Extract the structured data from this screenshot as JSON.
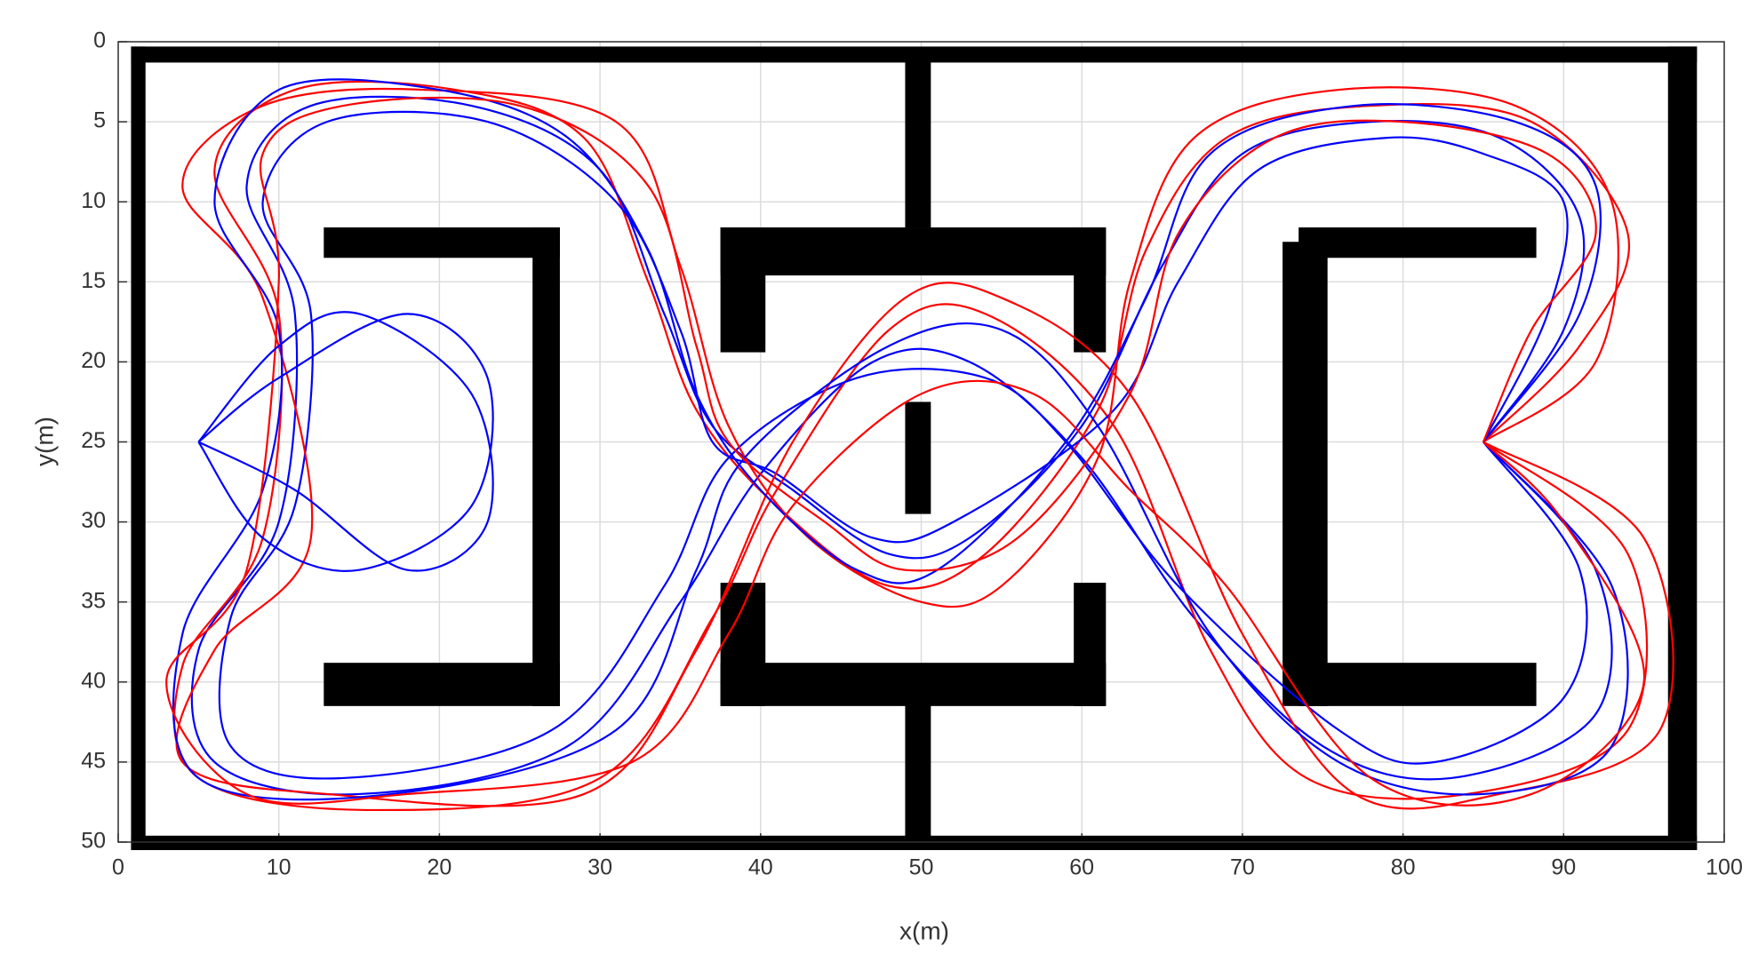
{
  "chart_data": {
    "type": "line",
    "xlabel": "x(m)",
    "ylabel": "y(m)",
    "xlim": [
      0,
      100
    ],
    "xticks": [
      0,
      10,
      20,
      30,
      40,
      50,
      60,
      70,
      80,
      90,
      100
    ],
    "ylim": [
      0,
      50
    ],
    "yticks": [
      0,
      5,
      10,
      15,
      20,
      25,
      30,
      35,
      40,
      45,
      50
    ],
    "y_reversed": true,
    "grid": true,
    "obstacle_color": "#000000",
    "obstacles": [
      [
        0.8,
        0.3,
        98.3,
        1.3
      ],
      [
        0.8,
        49.6,
        98.3,
        50.5
      ],
      [
        0.8,
        0.3,
        1.7,
        50.5
      ],
      [
        96.5,
        0.3,
        98.3,
        50.5
      ],
      [
        49,
        0.5,
        50.6,
        11.6
      ],
      [
        49,
        40.5,
        50.6,
        50
      ],
      [
        49,
        22.5,
        50.6,
        29.5
      ],
      [
        12.8,
        11.6,
        27.5,
        13.5
      ],
      [
        25.8,
        11.6,
        27.5,
        41.5
      ],
      [
        12.8,
        38.8,
        27.5,
        41.5
      ],
      [
        37.5,
        11.6,
        61.5,
        14.6
      ],
      [
        37.5,
        11.6,
        40.3,
        19.4
      ],
      [
        59.5,
        11.6,
        61.5,
        19.4
      ],
      [
        37.5,
        38.8,
        61.5,
        41.5
      ],
      [
        37.5,
        33.8,
        40.3,
        41.5
      ],
      [
        59.5,
        33.8,
        61.5,
        41.5
      ],
      [
        73.5,
        11.6,
        88.3,
        13.5
      ],
      [
        72.5,
        12.5,
        75.3,
        41.5
      ],
      [
        73.5,
        38.8,
        88.3,
        41.5
      ]
    ],
    "series": [
      {
        "color": "#0000ff",
        "x": [
          85,
          90,
          91,
          86,
          78,
          70,
          65,
          60,
          53,
          48,
          42,
          37,
          34,
          30,
          22,
          12,
          8,
          11,
          10,
          5,
          6,
          15,
          28,
          35,
          40,
          47,
          53,
          60,
          67,
          75,
          83,
          92,
          92,
          85
        ],
        "values": [
          25,
          18,
          11,
          6,
          5,
          7,
          14,
          24,
          31,
          32,
          28,
          24,
          17,
          8,
          4,
          4,
          9,
          17,
          30,
          38,
          45,
          47,
          44,
          35,
          27,
          20,
          20,
          26,
          36,
          44,
          46,
          42,
          33,
          25
        ]
      },
      {
        "color": "#ff0000",
        "x": [
          85,
          91,
          94,
          88,
          78,
          69,
          64,
          61,
          54,
          48,
          41,
          36,
          33,
          29,
          21,
          11,
          6,
          10,
          9,
          4,
          5,
          16,
          30,
          37,
          41,
          48,
          54,
          62,
          68,
          74,
          84,
          94,
          94,
          85
        ],
        "values": [
          25,
          19,
          12,
          5,
          4,
          6,
          13,
          23,
          32,
          34,
          29,
          23,
          15,
          6,
          3,
          3,
          8,
          17,
          31,
          39,
          46,
          48,
          46,
          36,
          28,
          18,
          17,
          24,
          38,
          46,
          47,
          43,
          32,
          25
        ]
      },
      {
        "color": "#0000ff",
        "x": [
          85,
          89,
          90,
          85,
          79,
          71,
          66,
          62,
          52,
          47,
          41,
          37,
          35,
          31,
          23,
          13,
          9,
          12,
          11,
          7,
          7,
          14,
          27,
          34,
          38,
          46,
          54,
          59,
          66,
          76,
          82,
          90,
          91,
          85
        ],
        "values": [
          25,
          17,
          10,
          7,
          6,
          8,
          15,
          23,
          30,
          31,
          27,
          25,
          18,
          10,
          5,
          5,
          10,
          17,
          29,
          36,
          44,
          46,
          43,
          34,
          26,
          21,
          21,
          25,
          34,
          43,
          45,
          41,
          33,
          25
        ]
      },
      {
        "color": "#ff0000",
        "x": [
          85,
          92,
          93,
          87,
          76,
          67,
          63,
          61,
          55,
          50,
          43,
          38,
          35,
          31,
          19,
          9,
          4,
          9,
          12,
          6,
          4,
          13,
          29,
          36,
          42,
          49,
          55,
          63,
          70,
          77,
          86,
          96,
          95,
          85
        ],
        "values": [
          25,
          20,
          10,
          4,
          3,
          6,
          15,
          26,
          34,
          35,
          31,
          24,
          14,
          5,
          3,
          4,
          9,
          16,
          31,
          38,
          45,
          47,
          47,
          38,
          25,
          16,
          16,
          22,
          37,
          47,
          47,
          43,
          31,
          25
        ]
      },
      {
        "color": "#0000ff",
        "x": [
          85,
          91,
          92,
          87,
          77,
          68,
          64,
          59,
          51,
          46,
          40,
          36,
          33,
          28,
          20,
          10,
          6,
          10,
          9,
          4,
          5,
          17,
          31,
          36,
          39,
          48,
          55,
          61,
          68,
          76,
          85,
          93,
          93,
          85
        ],
        "values": [
          25,
          17,
          9,
          5,
          4,
          7,
          16,
          25,
          33,
          33,
          28,
          22,
          13,
          6,
          3,
          3,
          10,
          18,
          28,
          37,
          46,
          47,
          43,
          33,
          26,
          19,
          18,
          24,
          37,
          45,
          47,
          44,
          34,
          25
        ]
      },
      {
        "color": "#ff0000",
        "x": [
          85,
          88,
          92,
          89,
          80,
          72,
          66,
          63,
          56,
          49,
          44,
          38,
          36,
          33,
          25,
          14,
          9,
          10,
          8,
          3,
          8,
          18,
          32,
          38,
          42,
          50,
          57,
          63,
          69,
          78,
          88,
          95,
          90,
          85
        ],
        "values": [
          25,
          18,
          12,
          7,
          5,
          6,
          12,
          22,
          31,
          33,
          30,
          25,
          19,
          9,
          4,
          4,
          7,
          15,
          33,
          40,
          47,
          47,
          45,
          37,
          29,
          22,
          22,
          28,
          34,
          46,
          47,
          40,
          30,
          25
        ]
      },
      {
        "color": "#0000ff",
        "x": [
          5,
          10,
          18,
          23,
          22,
          15,
          9,
          5
        ],
        "values": [
          25,
          21,
          17,
          21,
          29,
          33,
          31,
          25
        ]
      },
      {
        "color": "#0000ff",
        "x": [
          5,
          11,
          18,
          23,
          22,
          15,
          10,
          5
        ],
        "values": [
          25,
          28,
          33,
          30,
          22,
          17,
          19,
          25
        ]
      }
    ]
  }
}
